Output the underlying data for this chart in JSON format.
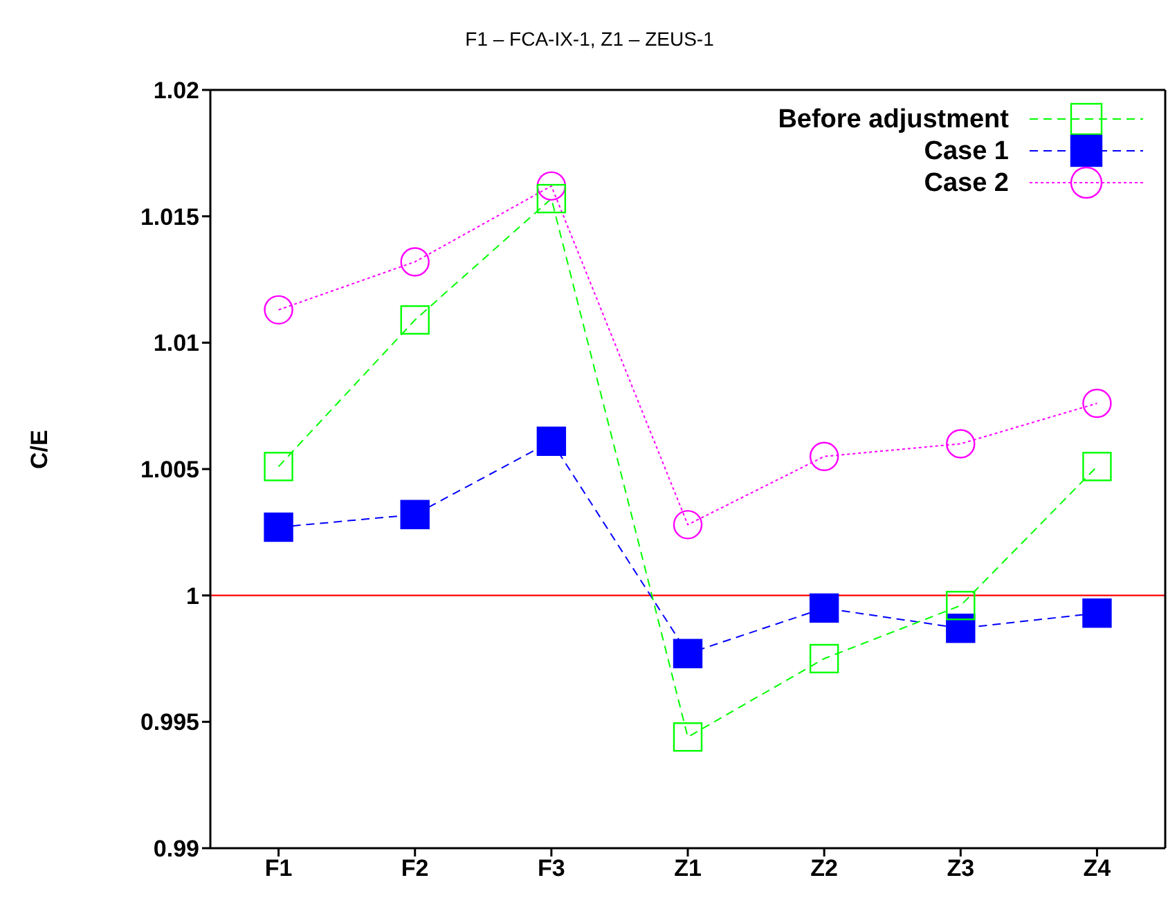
{
  "chart_data": {
    "type": "line",
    "title": "F1 – FCA-IX-1, Z1 – ZEUS-1",
    "ylabel": "C/E",
    "categories": [
      "F1",
      "F2",
      "F3",
      "Z1",
      "Z2",
      "Z3",
      "Z4"
    ],
    "series": [
      {
        "name": "Before adjustment",
        "color": "#00ff00",
        "marker": "square",
        "line_style": "dashed",
        "values": [
          1.0051,
          1.0109,
          1.0157,
          0.9944,
          0.9975,
          0.9996,
          1.0051
        ]
      },
      {
        "name": "Case 1",
        "color": "#0000ff",
        "marker": "square",
        "line_style": "dashed",
        "values": [
          1.0027,
          1.0032,
          1.0061,
          0.9977,
          0.9995,
          0.9987,
          0.9993
        ]
      },
      {
        "name": "Case 2",
        "color": "#ff00ff",
        "marker": "circle",
        "line_style": "dotted",
        "values": [
          1.0113,
          1.0132,
          1.0162,
          1.0028,
          1.0055,
          1.006,
          1.0076
        ]
      }
    ],
    "ylim": [
      0.99,
      1.02
    ],
    "yticks": [
      0.99,
      0.995,
      1,
      1.005,
      1.01,
      1.015,
      1.02
    ],
    "ref_lines": [
      {
        "axis": "y",
        "value": 1,
        "color": "#ff0000"
      }
    ],
    "grid": false,
    "legend": "top right"
  }
}
